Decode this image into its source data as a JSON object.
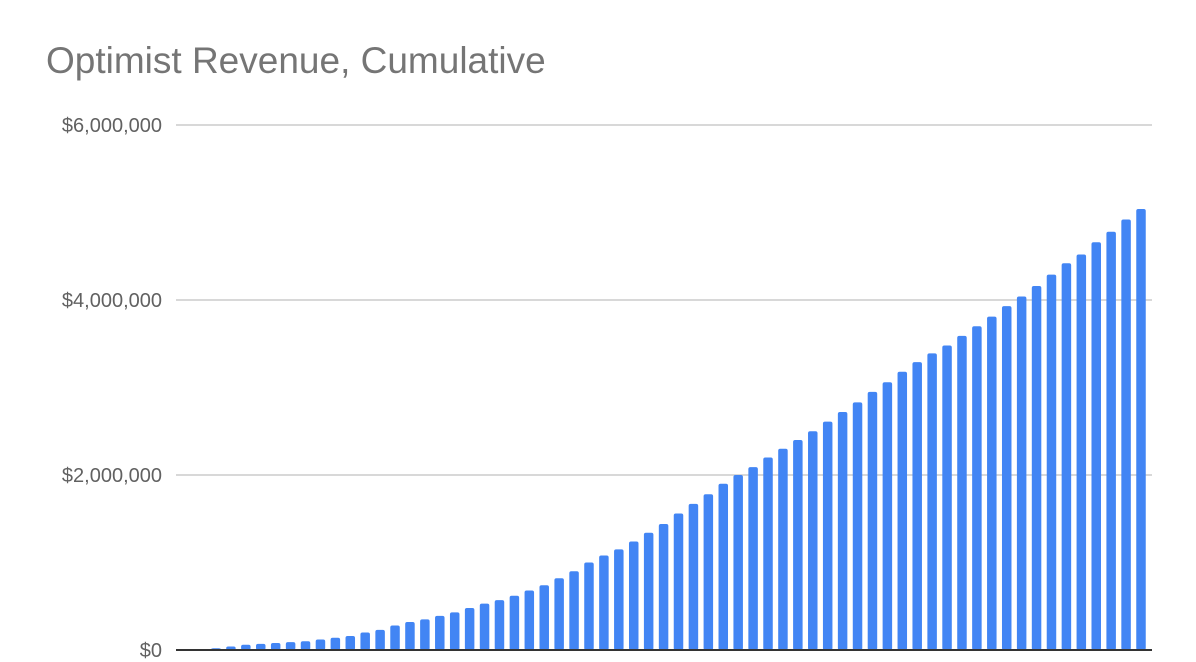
{
  "chart_data": {
    "type": "bar",
    "title": "Optimist Revenue, Cumulative",
    "xlabel": "",
    "ylabel": "",
    "ylim": [
      0,
      6000000
    ],
    "yticks": [
      {
        "value": 0,
        "label": "$0"
      },
      {
        "value": 2000000,
        "label": "$2,000,000"
      },
      {
        "value": 4000000,
        "label": "$4,000,000"
      },
      {
        "value": 6000000,
        "label": "$6,000,000"
      }
    ],
    "grid": true,
    "legend": "none",
    "bar_color": "#4285F4",
    "values": [
      20000,
      40000,
      60000,
      70000,
      80000,
      90000,
      100000,
      120000,
      140000,
      160000,
      200000,
      230000,
      280000,
      320000,
      350000,
      390000,
      430000,
      480000,
      530000,
      570000,
      620000,
      680000,
      740000,
      820000,
      900000,
      1000000,
      1080000,
      1150000,
      1240000,
      1340000,
      1440000,
      1560000,
      1670000,
      1780000,
      1900000,
      2000000,
      2090000,
      2200000,
      2300000,
      2400000,
      2500000,
      2610000,
      2720000,
      2830000,
      2950000,
      3060000,
      3180000,
      3290000,
      3390000,
      3480000,
      3590000,
      3700000,
      3810000,
      3930000,
      4040000,
      4160000,
      4290000,
      4420000,
      4520000,
      4660000,
      4780000,
      4920000,
      5040000
    ]
  }
}
